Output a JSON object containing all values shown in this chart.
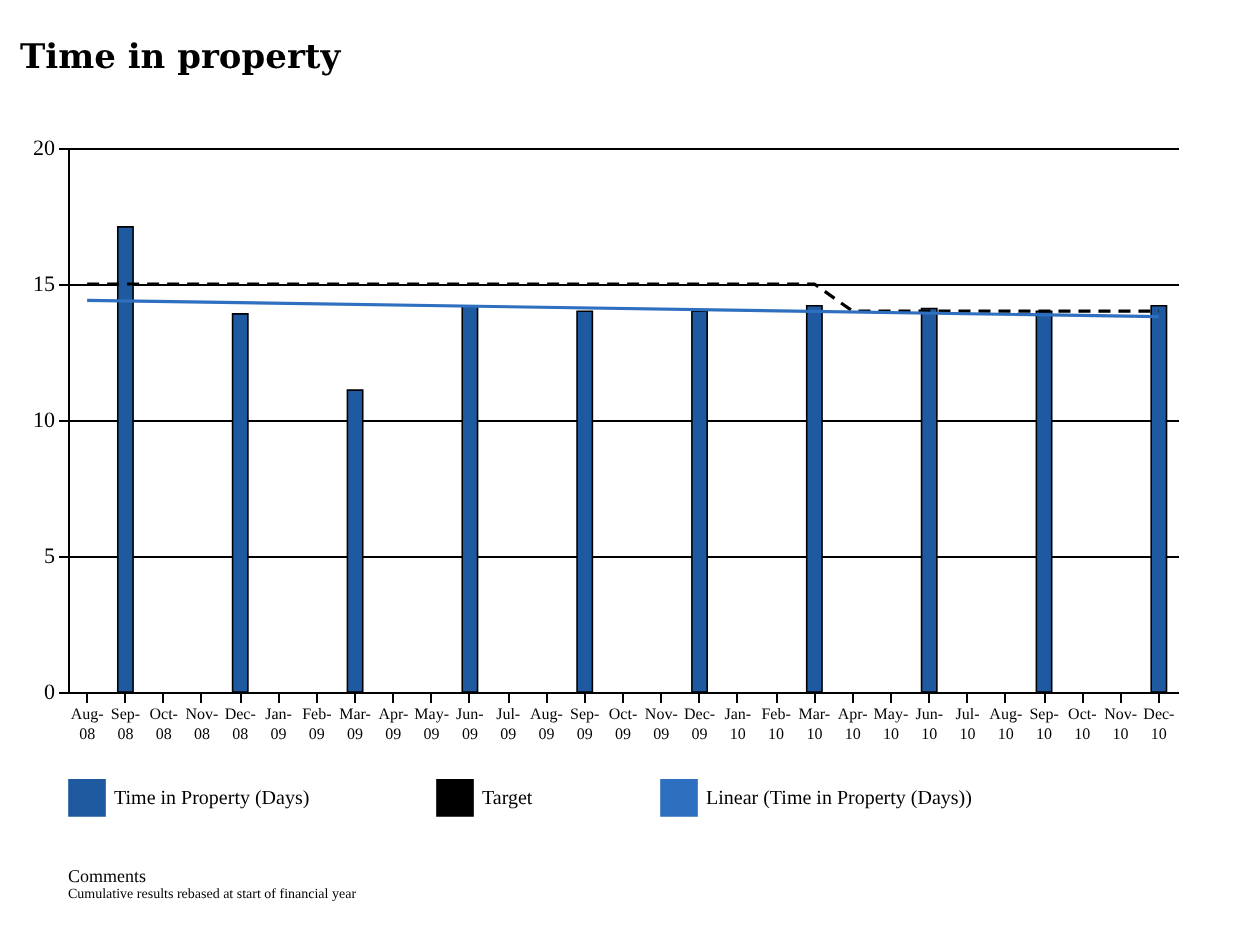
{
  "chart_data": {
    "type": "bar",
    "title": "Time in property",
    "categories": [
      "Aug-08",
      "Sep-08",
      "Oct-08",
      "Nov-08",
      "Dec-08",
      "Jan-09",
      "Feb-09",
      "Mar-09",
      "Apr-09",
      "May-09",
      "Jun-09",
      "Jul-09",
      "Aug-09",
      "Sep-09",
      "Oct-09",
      "Nov-09",
      "Dec-09",
      "Jan-10",
      "Feb-10",
      "Mar-10",
      "Apr-10",
      "May-10",
      "Jun-10",
      "Jul-10",
      "Aug-10",
      "Sep-10",
      "Oct-10",
      "Nov-10",
      "Dec-10"
    ],
    "series": [
      {
        "name": "Time in Property (Days)",
        "color": "#1f5aa0",
        "values": [
          null,
          17.1,
          null,
          null,
          13.9,
          null,
          null,
          11.1,
          null,
          null,
          14.2,
          null,
          null,
          14.0,
          null,
          null,
          14.0,
          null,
          null,
          14.2,
          null,
          null,
          14.1,
          null,
          null,
          14.0,
          null,
          null,
          14.2
        ]
      },
      {
        "name": "Target",
        "type": "line",
        "color": "#000000",
        "line_style": "dashed",
        "values": [
          15,
          15,
          15,
          15,
          15,
          15,
          15,
          15,
          15,
          15,
          15,
          15,
          15,
          15,
          15,
          15,
          15,
          15,
          15,
          15,
          14,
          14,
          14,
          14,
          14,
          14,
          14,
          14,
          14
        ]
      },
      {
        "name": "Linear (Time in Property (Days))",
        "type": "line",
        "color": "#2e6fbf",
        "line_style": "solid",
        "values": [
          14.4,
          null,
          null,
          null,
          null,
          null,
          null,
          null,
          null,
          null,
          null,
          null,
          null,
          null,
          null,
          null,
          null,
          null,
          null,
          null,
          null,
          null,
          null,
          null,
          null,
          null,
          null,
          null,
          13.8
        ]
      }
    ],
    "ylim": [
      0,
      20
    ],
    "yticks": [
      0,
      5,
      10,
      15,
      20
    ],
    "grid": "y",
    "legend": "bottom",
    "marker": "none",
    "annotations": [
      "Comments",
      "Cumulative results rebased at start of financial year"
    ]
  }
}
